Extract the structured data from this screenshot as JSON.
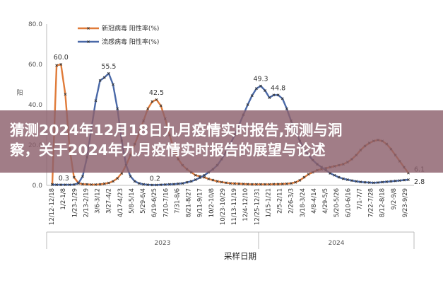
{
  "banner": {
    "line1": "猜测2024年12月18日九月疫情实时报告,预测与洞",
    "line2": "察，关于2024年九月疫情实时报告的展望与论述"
  },
  "chart_data": {
    "type": "line",
    "xlabel": "采样日期",
    "ylabel": "阳",
    "ylim": [
      0,
      80
    ],
    "yticks": [
      "0.0",
      "20.0",
      "40.0",
      "60.0",
      "80.0"
    ],
    "legend_position": "top-left",
    "x_tick_labels": [
      "12/12-12/18",
      "1/2-1/8",
      "1/23-1/29",
      "2/13-2/19",
      "3/6-3/12",
      "3/27-4/2",
      "4/17-4/23",
      "5/8-5/14",
      "5/29-6/4",
      "6/19-6/25",
      "7/10-7/16",
      "7/31-8/6",
      "8/21-8/27",
      "9/11-9/17",
      "10/2-10/8",
      "10/23-10/29",
      "11/13-11/19",
      "12/4-12/10",
      "12/25-12/31",
      "1/15-1/21",
      "2/5-2/11",
      "2/26-3/3",
      "3/18-3/24",
      "4/8-4/14",
      "4/29-5/5",
      "5/20-5/26",
      "6/10-6/16",
      "7/1-7/7",
      "7/22-7/28",
      "8/12-8/18",
      "9/2-9/8",
      "9/23-9/29"
    ],
    "year_labels": [
      "2023",
      "2024"
    ],
    "series": [
      {
        "name": "新冠病毒 阳性率(%)",
        "color": "#e07b39",
        "values": [
          0.5,
          59.5,
          60.0,
          45.2,
          18.0,
          4.0,
          1.2,
          0.6,
          0.5,
          0.4,
          0.4,
          0.5,
          0.8,
          1.2,
          2.0,
          3.5,
          6.0,
          10.0,
          15.0,
          20.5,
          26.0,
          32.0,
          38.0,
          41.5,
          42.5,
          39.5,
          33.0,
          25.0,
          18.0,
          13.0,
          10.0,
          8.0,
          6.5,
          5.0,
          4.5,
          4.0,
          3.2,
          2.6,
          2.0,
          1.6,
          1.3,
          1.0,
          0.9,
          0.8,
          0.7,
          0.6,
          0.5,
          0.5,
          0.5,
          0.5,
          0.5,
          0.6,
          0.6,
          0.7,
          0.8,
          1.0,
          1.5,
          2.5,
          4.0,
          5.5,
          6.5,
          7.5,
          8.0,
          8.5,
          9.0,
          9.5,
          10.0,
          10.5,
          11.5,
          13.0,
          15.0,
          17.5,
          19.5,
          21.0,
          22.0,
          22.5,
          22.0,
          20.5,
          18.0,
          15.0,
          12.0,
          9.0,
          6.1
        ],
        "labels": [
          {
            "index": 2,
            "text": "60.0"
          },
          {
            "index": 24,
            "text": "42.5"
          },
          {
            "index": 82,
            "text": "6.1"
          }
        ]
      },
      {
        "name": "流感病毒 阳性率(%)",
        "color": "#4a69a8",
        "values": [
          0.3,
          0.3,
          0.3,
          0.3,
          0.3,
          0.4,
          1.0,
          4.5,
          14.0,
          28.0,
          42.0,
          52.0,
          53.5,
          55.5,
          50.0,
          38.0,
          22.0,
          10.0,
          4.5,
          2.0,
          1.0,
          0.5,
          0.3,
          0.2,
          0.2,
          0.3,
          0.4,
          0.5,
          0.6,
          0.8,
          1.0,
          1.5,
          2.0,
          2.8,
          3.8,
          5.0,
          6.5,
          8.0,
          10.0,
          13.0,
          16.5,
          20.5,
          25.0,
          30.0,
          35.0,
          40.0,
          44.5,
          48.0,
          49.3,
          47.0,
          43.5,
          44.8,
          44.8,
          43.0,
          38.0,
          32.0,
          27.0,
          22.0,
          18.0,
          15.0,
          12.5,
          10.5,
          9.0,
          7.5,
          6.0,
          5.0,
          4.0,
          3.3,
          2.8,
          2.4,
          2.0,
          1.7,
          1.5,
          1.4,
          1.3,
          1.4,
          1.6,
          1.8,
          2.0,
          2.2,
          2.4,
          2.6,
          2.8
        ],
        "labels": [
          {
            "index": 2,
            "text": "0.3"
          },
          {
            "index": 13,
            "text": "55.5"
          },
          {
            "index": 23,
            "text": "0.2"
          },
          {
            "index": 48,
            "text": "49.3"
          },
          {
            "index": 52,
            "text": "44.8"
          },
          {
            "index": 82,
            "text": "2.8"
          }
        ]
      }
    ]
  }
}
